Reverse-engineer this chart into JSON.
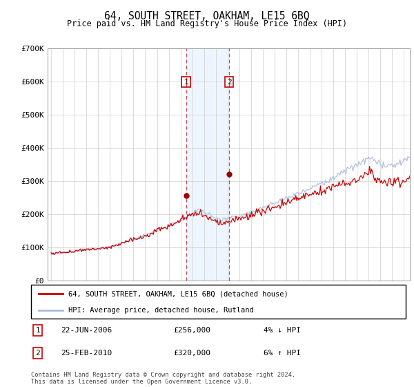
{
  "title": "64, SOUTH STREET, OAKHAM, LE15 6BQ",
  "subtitle": "Price paid vs. HM Land Registry's House Price Index (HPI)",
  "hpi_color": "#aabbdd",
  "price_color": "#cc0000",
  "sale1_date_label": "22-JUN-2006",
  "sale1_price": 256000,
  "sale1_pct": "4% ↓ HPI",
  "sale1_year": 2006.47,
  "sale2_date_label": "25-FEB-2010",
  "sale2_price": 320000,
  "sale2_pct": "6% ↑ HPI",
  "sale2_year": 2010.13,
  "legend_line1": "64, SOUTH STREET, OAKHAM, LE15 6BQ (detached house)",
  "legend_line2": "HPI: Average price, detached house, Rutland",
  "footer": "Contains HM Land Registry data © Crown copyright and database right 2024.\nThis data is licensed under the Open Government Licence v3.0.",
  "ylim": [
    0,
    700000
  ],
  "xlim_start": 1994.7,
  "xlim_end": 2025.5,
  "yticks": [
    0,
    100000,
    200000,
    300000,
    400000,
    500000,
    600000,
    700000
  ],
  "ytick_labels": [
    "£0",
    "£100K",
    "£200K",
    "£300K",
    "£400K",
    "£500K",
    "£600K",
    "£700K"
  ],
  "background_color": "#ffffff",
  "grid_color": "#cccccc",
  "shade_color": "#ddeeff",
  "shade_alpha": 0.5
}
